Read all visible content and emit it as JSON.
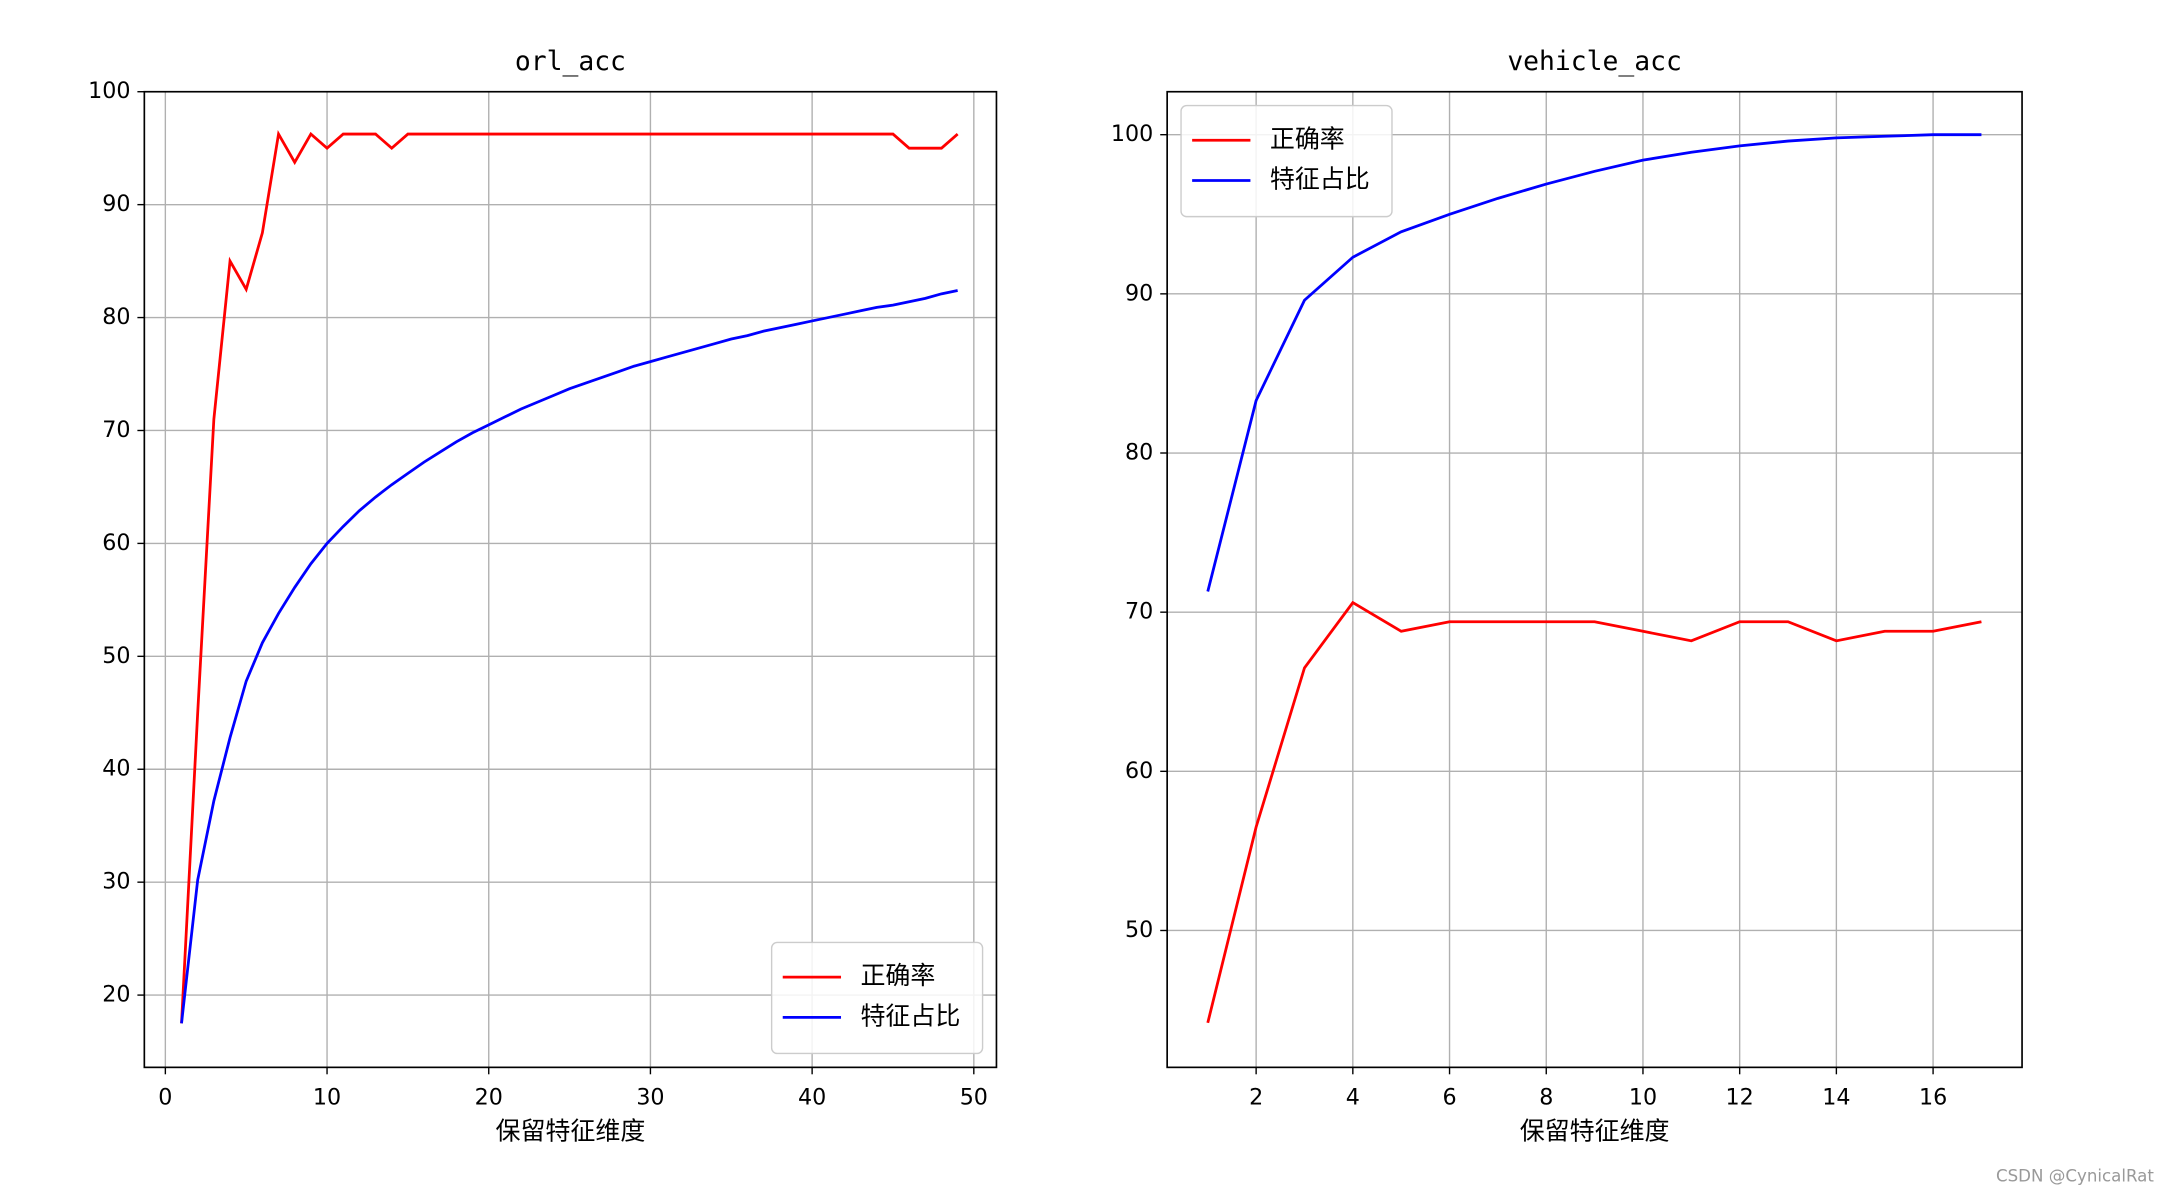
{
  "chart_data": [
    {
      "type": "line",
      "title": "orl_acc",
      "x_label": "保留特征维度",
      "x": [
        1,
        2,
        3,
        4,
        5,
        6,
        7,
        8,
        9,
        10,
        11,
        12,
        13,
        14,
        15,
        16,
        17,
        18,
        19,
        20,
        21,
        22,
        23,
        24,
        25,
        26,
        27,
        28,
        29,
        30,
        31,
        32,
        33,
        34,
        35,
        36,
        37,
        38,
        39,
        40,
        41,
        42,
        43,
        44,
        45,
        46,
        47,
        48,
        49
      ],
      "series": [
        {
          "name": "正确率",
          "color": "#ff0000",
          "values": [
            17.5,
            45,
            71,
            85,
            82.5,
            87.5,
            96.25,
            93.75,
            96.25,
            95,
            96.25,
            96.25,
            96.25,
            95,
            96.25,
            96.25,
            96.25,
            96.25,
            96.25,
            96.25,
            96.25,
            96.25,
            96.25,
            96.25,
            96.25,
            96.25,
            96.25,
            96.25,
            96.25,
            96.25,
            96.25,
            96.25,
            96.25,
            96.25,
            96.25,
            96.25,
            96.25,
            96.25,
            96.25,
            96.25,
            96.25,
            96.25,
            96.25,
            96.25,
            96.25,
            95,
            95,
            95,
            96.25
          ]
        },
        {
          "name": "特征占比",
          "color": "#0000ff",
          "values": [
            17.5,
            30.2,
            37.2,
            42.8,
            47.8,
            51.2,
            53.8,
            56.1,
            58.2,
            60.0,
            61.5,
            62.9,
            64.1,
            65.2,
            66.2,
            67.2,
            68.1,
            69.0,
            69.8,
            70.5,
            71.2,
            71.9,
            72.5,
            73.1,
            73.7,
            74.2,
            74.7,
            75.2,
            75.7,
            76.1,
            76.5,
            76.9,
            77.3,
            77.7,
            78.1,
            78.4,
            78.8,
            79.1,
            79.4,
            79.7,
            80.0,
            80.3,
            80.6,
            80.9,
            81.1,
            81.4,
            81.7,
            82.1,
            82.4
          ]
        }
      ],
      "xlim": [
        -1.3,
        51.4
      ],
      "xticks": [
        0,
        10,
        20,
        30,
        40,
        50
      ],
      "ylim": [
        13.6,
        100
      ],
      "yticks": [
        20,
        30,
        40,
        50,
        60,
        70,
        80,
        90,
        100
      ],
      "grid": true,
      "legend": "lower right"
    },
    {
      "type": "line",
      "title": "vehicle_acc",
      "x_label": "保留特征维度",
      "x": [
        1,
        2,
        3,
        4,
        5,
        6,
        7,
        8,
        9,
        10,
        11,
        12,
        13,
        14,
        15,
        16,
        17
      ],
      "series": [
        {
          "name": "正确率",
          "color": "#ff0000",
          "values": [
            44.2,
            56.5,
            66.5,
            70.6,
            68.8,
            69.4,
            69.4,
            69.4,
            69.4,
            68.8,
            68.2,
            69.4,
            69.4,
            68.2,
            68.8,
            68.8,
            69.4
          ]
        },
        {
          "name": "特征占比",
          "color": "#0000ff",
          "values": [
            71.3,
            83.3,
            89.6,
            92.3,
            93.9,
            95.0,
            96.0,
            96.9,
            97.7,
            98.4,
            98.9,
            99.3,
            99.6,
            99.8,
            99.9,
            100.0,
            100.0
          ]
        }
      ],
      "xlim": [
        0.16,
        17.84
      ],
      "xticks": [
        2,
        4,
        6,
        8,
        10,
        12,
        14,
        16
      ],
      "ylim": [
        41.4,
        102.7
      ],
      "yticks": [
        50,
        60,
        70,
        80,
        90,
        100
      ],
      "grid": true,
      "legend": "upper left"
    }
  ],
  "watermark": "CSDN @CynicalRat"
}
